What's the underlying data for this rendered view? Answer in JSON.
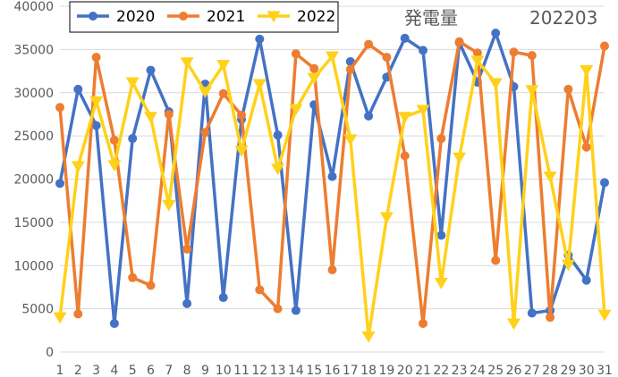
{
  "chart_data": {
    "type": "line",
    "title": "発電量",
    "subtitle": "202203",
    "xlabel": "",
    "ylabel": "",
    "ylim": [
      0,
      40000
    ],
    "yticks": [
      0,
      5000,
      10000,
      15000,
      20000,
      25000,
      30000,
      35000,
      40000
    ],
    "grid": "horizontal",
    "legend_placement": "top-left",
    "x": [
      "1",
      "2",
      "3",
      "4",
      "5",
      "6",
      "7",
      "8",
      "9",
      "10",
      "11",
      "12",
      "13",
      "14",
      "15",
      "16",
      "17",
      "18",
      "19",
      "20",
      "21",
      "22",
      "23",
      "24",
      "25",
      "26",
      "27",
      "28",
      "29",
      "30",
      "31"
    ],
    "series": [
      {
        "name": "2020",
        "color": "#4472C4",
        "marker": "circle",
        "values": [
          19500,
          30400,
          26200,
          3300,
          24700,
          32600,
          27800,
          5600,
          31000,
          6300,
          26900,
          36200,
          25100,
          4800,
          28600,
          20300,
          33600,
          27300,
          31800,
          36300,
          34900,
          13500,
          35800,
          31200,
          36900,
          30700,
          4500,
          4800,
          11200,
          8300,
          19600
        ]
      },
      {
        "name": "2021",
        "color": "#ED7D31",
        "marker": "circle",
        "values": [
          28300,
          4400,
          34100,
          24500,
          8600,
          7700,
          27500,
          11900,
          25400,
          29900,
          27400,
          7200,
          5000,
          34500,
          32800,
          9500,
          32700,
          35600,
          34100,
          22700,
          3300,
          24700,
          35900,
          34600,
          10600,
          34700,
          34300,
          4000,
          30400,
          23700,
          35400
        ]
      },
      {
        "name": "2022",
        "color": "#FFD11A",
        "marker": "triangle-down",
        "values": [
          4000,
          21500,
          29000,
          21600,
          31200,
          27200,
          17000,
          33500,
          30100,
          33200,
          23300,
          31000,
          21200,
          28100,
          31700,
          34200,
          24600,
          1800,
          15600,
          27200,
          28000,
          8000,
          22500,
          33700,
          31100,
          3300,
          30300,
          20300,
          10100,
          32600,
          4300
        ]
      }
    ]
  }
}
